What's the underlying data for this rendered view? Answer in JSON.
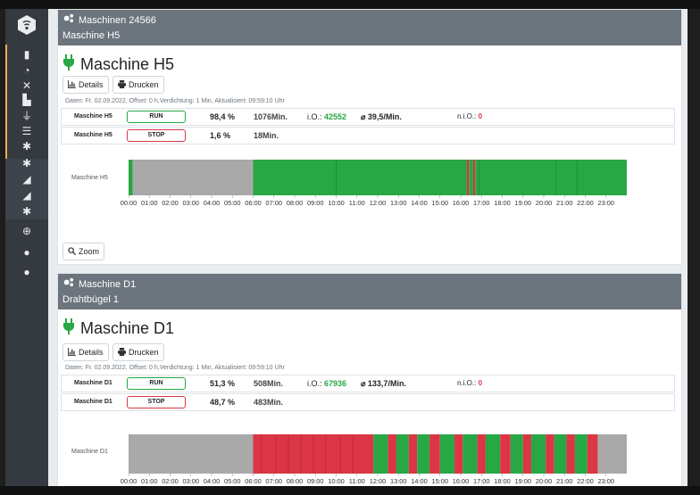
{
  "icons": {
    "logo": "wifi-logo-icon",
    "plug": "plug-icon",
    "cogs": "cogs-icon"
  },
  "sidebar": {
    "items": [
      "building-icon",
      "tachometer-icon",
      "tools-icon",
      "industry-icon",
      "plug-icon",
      "list-icon",
      "cog-icon",
      "cogs-icon",
      "chart-area-icon",
      "chart-line-icon",
      "cog-icon",
      "plus-circle-icon",
      "user-cog-icon",
      "user-cog-icon"
    ]
  },
  "colors": {
    "run": "#28a745",
    "stop": "#dc3545",
    "idle": "#a9a9a9",
    "header": "#6c757d"
  },
  "buttons": {
    "details": "Details",
    "print": "Drucken",
    "zoom": "Zoom"
  },
  "ticks": [
    "00:00",
    "01:00",
    "02:00",
    "03:00",
    "04:00",
    "05:00",
    "06:00",
    "07:00",
    "08:00",
    "09:00",
    "10:00",
    "11:00",
    "12:00",
    "13:00",
    "14:00",
    "15:00",
    "16:00",
    "17:00",
    "18:00",
    "19:00",
    "20:00",
    "21:00",
    "22:00",
    "23:00"
  ],
  "cards": [
    {
      "header_title": "Maschinen 24566",
      "header_sub": "Maschine H5",
      "title": "Maschine H5",
      "meta": "Daten: Fr. 02.09.2022, Offset: 0 h,Verdichtung: 1 Min, Aktualisiert: 09:59:10 Uhr",
      "rows": [
        {
          "name": "Maschine H5",
          "status": "RUN",
          "pct": "98,4 %",
          "minutes": "1076Min.",
          "io_label": "i.O.:",
          "io_value": "42552",
          "avg": "⌀ 39,5/Min.",
          "nio_label": "n.i.O.:",
          "nio_value": "0"
        },
        {
          "name": "Maschine H5",
          "status": "STOP",
          "pct": "1,6 %",
          "minutes": "18Min."
        }
      ],
      "chart_label": "Maschine H5"
    },
    {
      "header_title": "Maschine D1",
      "header_sub": "Drahtbügel 1",
      "title": "Maschine D1",
      "meta": "Daten: Fr. 02.09.2022, Offset: 0 h,Verdichtung: 1 Min, Aktualisiert: 09:59:10 Uhr",
      "rows": [
        {
          "name": "Maschine D1",
          "status": "RUN",
          "pct": "51,3 %",
          "minutes": "508Min.",
          "io_label": "i.O.:",
          "io_value": "67936",
          "avg": "⌀ 133,7/Min.",
          "nio_label": "n.i.O.:",
          "nio_value": "0"
        },
        {
          "name": "Maschine D1",
          "status": "STOP",
          "pct": "48,7 %",
          "minutes": "483Min."
        }
      ],
      "chart_label": "Maschine D1"
    }
  ],
  "chart_data": [
    {
      "type": "timeline",
      "series_name": "Maschine H5",
      "x_unit": "hour",
      "xlim": [
        0,
        24
      ],
      "segments": [
        {
          "start": 0.0,
          "end": 0.2,
          "state": "run"
        },
        {
          "start": 0.2,
          "end": 6.0,
          "state": "idle"
        },
        {
          "start": 6.0,
          "end": 16.3,
          "state": "run"
        },
        {
          "start": 16.3,
          "end": 16.4,
          "state": "stop"
        },
        {
          "start": 16.4,
          "end": 16.6,
          "state": "run"
        },
        {
          "start": 16.6,
          "end": 16.7,
          "state": "stop"
        },
        {
          "start": 16.7,
          "end": 24.0,
          "state": "run"
        }
      ],
      "dividers": [
        10.0,
        16.9,
        20.6,
        21.6
      ]
    },
    {
      "type": "timeline",
      "series_name": "Maschine D1",
      "x_unit": "hour",
      "xlim": [
        0,
        24
      ],
      "segments": [
        {
          "start": 0.0,
          "end": 6.0,
          "state": "idle"
        },
        {
          "start": 6.0,
          "end": 11.8,
          "state": "stop"
        },
        {
          "start": 11.8,
          "end": 12.5,
          "state": "run"
        },
        {
          "start": 12.5,
          "end": 12.9,
          "state": "stop"
        },
        {
          "start": 12.9,
          "end": 13.5,
          "state": "run"
        },
        {
          "start": 13.5,
          "end": 13.9,
          "state": "stop"
        },
        {
          "start": 13.9,
          "end": 14.5,
          "state": "run"
        },
        {
          "start": 14.5,
          "end": 15.0,
          "state": "stop"
        },
        {
          "start": 15.0,
          "end": 15.7,
          "state": "run"
        },
        {
          "start": 15.7,
          "end": 16.1,
          "state": "stop"
        },
        {
          "start": 16.1,
          "end": 16.8,
          "state": "run"
        },
        {
          "start": 16.8,
          "end": 17.2,
          "state": "stop"
        },
        {
          "start": 17.2,
          "end": 17.9,
          "state": "run"
        },
        {
          "start": 17.9,
          "end": 18.4,
          "state": "stop"
        },
        {
          "start": 18.4,
          "end": 19.0,
          "state": "run"
        },
        {
          "start": 19.0,
          "end": 19.4,
          "state": "stop"
        },
        {
          "start": 19.4,
          "end": 20.1,
          "state": "run"
        },
        {
          "start": 20.1,
          "end": 20.5,
          "state": "stop"
        },
        {
          "start": 20.5,
          "end": 21.1,
          "state": "run"
        },
        {
          "start": 21.1,
          "end": 21.5,
          "state": "stop"
        },
        {
          "start": 21.5,
          "end": 22.1,
          "state": "run"
        },
        {
          "start": 22.1,
          "end": 22.6,
          "state": "stop"
        },
        {
          "start": 22.6,
          "end": 24.0,
          "state": "idle"
        }
      ],
      "dividers": [
        6.4,
        7.1,
        7.7,
        8.3,
        8.9,
        9.5,
        10.2,
        10.8
      ]
    }
  ]
}
